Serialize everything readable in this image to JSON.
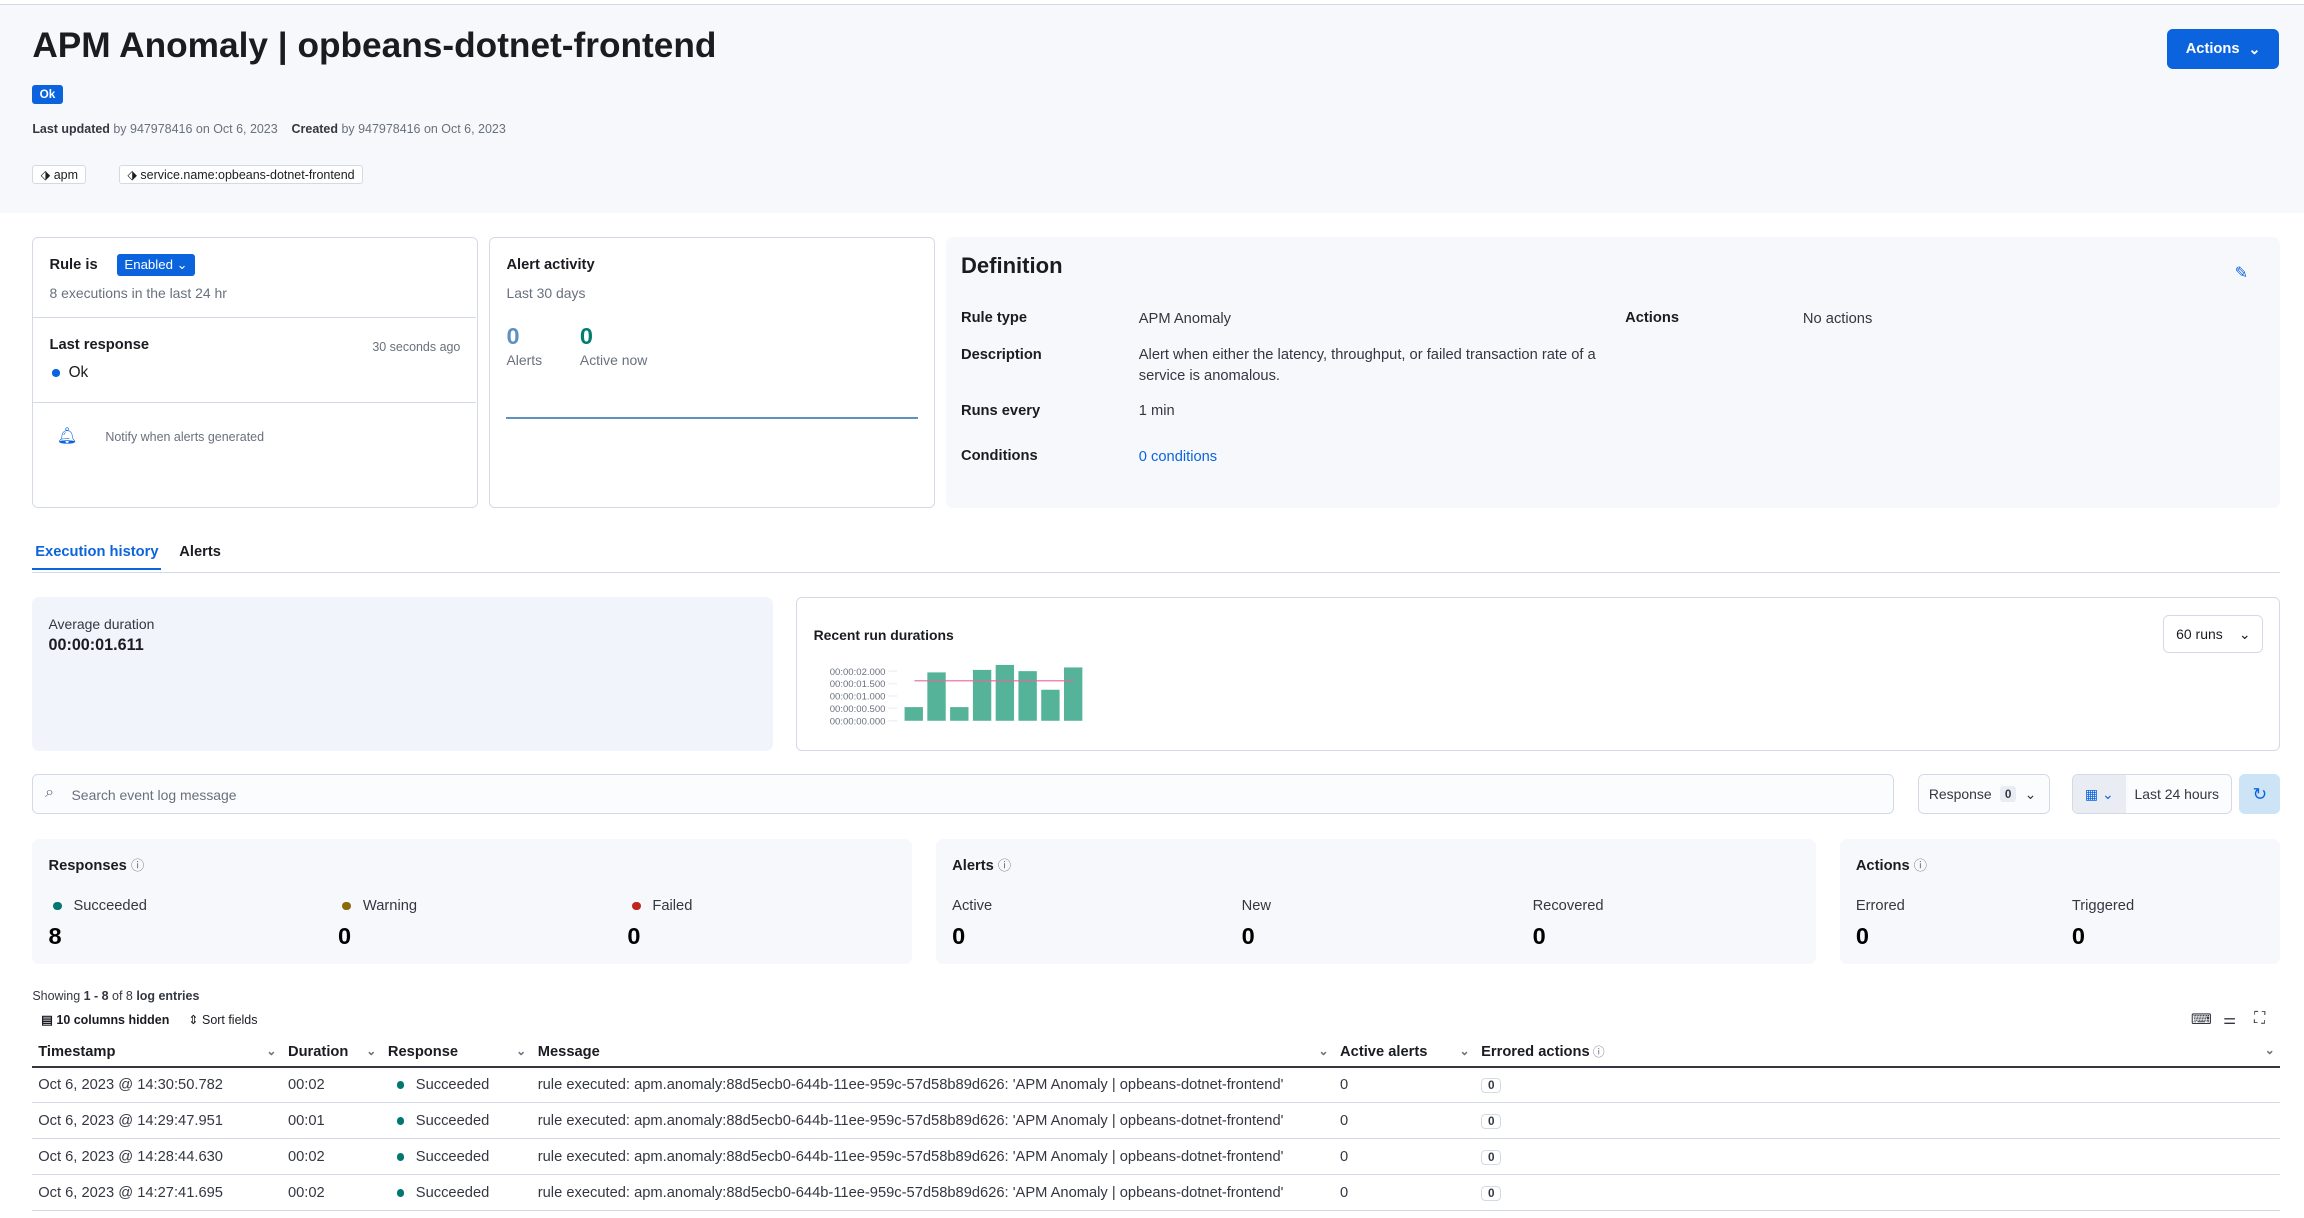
{
  "header": {
    "title": "APM Anomaly | opbeans-dotnet-frontend",
    "status": "Ok",
    "last_updated_label": "Last updated",
    "last_updated_text": "by 947978416 on Oct 6, 2023",
    "created_label": "Created",
    "created_text": "by 947978416 on Oct 6, 2023",
    "tags": [
      "apm",
      "service.name:opbeans-dotnet-frontend"
    ],
    "actions_label": "Actions"
  },
  "rule_status": {
    "rule_is": "Rule is",
    "state": "Enabled",
    "executions": "8 executions in the last 24 hr",
    "last_response_label": "Last response",
    "last_response_time": "30 seconds ago",
    "last_response": "Ok",
    "notify": "Notify when alerts generated"
  },
  "alert_activity": {
    "title": "Alert activity",
    "period": "Last 30 days",
    "alerts_count": "0",
    "alerts_label": "Alerts",
    "active_count": "0",
    "active_label": "Active now"
  },
  "definition": {
    "title": "Definition",
    "rule_type_label": "Rule type",
    "rule_type": "APM Anomaly",
    "description_label": "Description",
    "description": "Alert when either the latency, throughput, or failed transaction rate of a service is anomalous.",
    "runs_every_label": "Runs every",
    "runs_every": "1 min",
    "conditions_label": "Conditions",
    "conditions": "0 conditions",
    "actions_label": "Actions",
    "actions": "No actions"
  },
  "tabs": [
    "Execution history",
    "Alerts"
  ],
  "avg_duration": {
    "label": "Average duration",
    "value": "00:00:01.611"
  },
  "recent_runs": {
    "title": "Recent run durations",
    "runs_select": "60 runs"
  },
  "chart_data": {
    "type": "bar",
    "title": "Recent run durations",
    "yticks": [
      "00:00:00.000",
      "00:00:00.500",
      "00:00:01.000",
      "00:00:01.500",
      "00:00:02.000"
    ],
    "ylim": [
      0,
      2.25
    ],
    "values_seconds": [
      0.55,
      1.95,
      0.55,
      2.05,
      2.25,
      2.0,
      1.25,
      2.15
    ],
    "average_seconds": 1.611,
    "bar_color": "#54b399",
    "average_color": "#e7664c"
  },
  "filters": {
    "search_placeholder": "Search event log message",
    "response_label": "Response",
    "response_count": "0",
    "time_range": "Last 24 hours"
  },
  "responses": {
    "title": "Responses",
    "items": [
      {
        "label": "Succeeded",
        "value": "8",
        "color": "#007871"
      },
      {
        "label": "Warning",
        "value": "0",
        "color": "#8a6a0a"
      },
      {
        "label": "Failed",
        "value": "0",
        "color": "#bd271e"
      }
    ]
  },
  "alerts_stats": {
    "title": "Alerts",
    "items": [
      {
        "label": "Active",
        "value": "0"
      },
      {
        "label": "New",
        "value": "0"
      },
      {
        "label": "Recovered",
        "value": "0"
      }
    ]
  },
  "actions_stats": {
    "title": "Actions",
    "items": [
      {
        "label": "Errored",
        "value": "0"
      },
      {
        "label": "Triggered",
        "value": "0"
      }
    ]
  },
  "table": {
    "showing_prefix": "Showing",
    "showing_range": "1 - 8",
    "showing_of": "of 8",
    "showing_suffix": "log entries",
    "columns_hidden": "10 columns hidden",
    "sort_fields": "Sort fields",
    "columns": [
      "Timestamp",
      "Duration",
      "Response",
      "Message",
      "Active alerts",
      "Errored actions"
    ],
    "rows": [
      [
        "Oct 6, 2023 @ 14:30:50.782",
        "00:02",
        "Succeeded",
        "rule executed: apm.anomaly:88d5ecb0-644b-11ee-959c-57d58b89d626: 'APM Anomaly | opbeans-dotnet-frontend'",
        "0",
        "0"
      ],
      [
        "Oct 6, 2023 @ 14:29:47.951",
        "00:01",
        "Succeeded",
        "rule executed: apm.anomaly:88d5ecb0-644b-11ee-959c-57d58b89d626: 'APM Anomaly | opbeans-dotnet-frontend'",
        "0",
        "0"
      ],
      [
        "Oct 6, 2023 @ 14:28:44.630",
        "00:02",
        "Succeeded",
        "rule executed: apm.anomaly:88d5ecb0-644b-11ee-959c-57d58b89d626: 'APM Anomaly | opbeans-dotnet-frontend'",
        "0",
        "0"
      ],
      [
        "Oct 6, 2023 @ 14:27:41.695",
        "00:02",
        "Succeeded",
        "rule executed: apm.anomaly:88d5ecb0-644b-11ee-959c-57d58b89d626: 'APM Anomaly | opbeans-dotnet-frontend'",
        "0",
        "0"
      ]
    ]
  }
}
